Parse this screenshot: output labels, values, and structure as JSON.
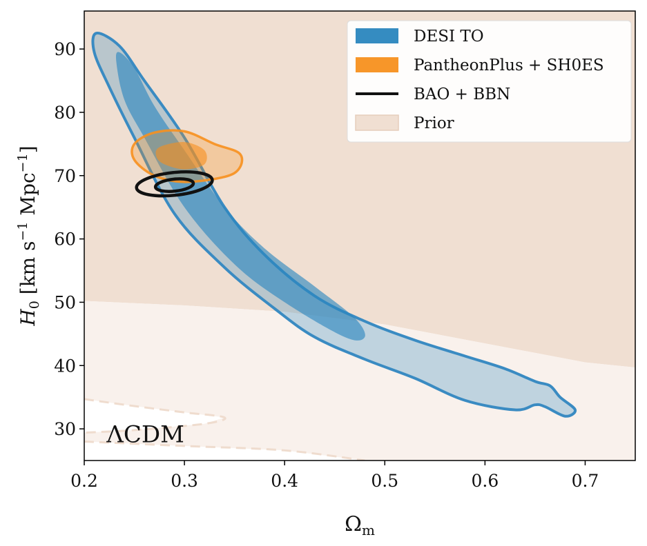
{
  "chart_data": {
    "type": "contour",
    "xlabel": "Ωm",
    "ylabel": "H0 [km s−1 Mpc−1]",
    "xlabel_parts": {
      "symbol": "Ω",
      "sub": "m"
    },
    "ylabel_parts": {
      "symbol": "H",
      "sub": "0",
      "unit_open": " [km s",
      "exp1": "−1",
      "unit_mid": " Mpc",
      "exp2": "−1",
      "unit_close": "]"
    },
    "xlim": [
      0.2,
      0.75
    ],
    "ylim": [
      25,
      96
    ],
    "xticks": [
      0.2,
      0.3,
      0.4,
      0.5,
      0.6,
      0.7
    ],
    "xtick_labels": [
      "0.2",
      "0.3",
      "0.4",
      "0.5",
      "0.6",
      "0.7"
    ],
    "yticks": [
      30,
      40,
      50,
      60,
      70,
      80,
      90
    ],
    "ytick_labels": [
      "30",
      "40",
      "50",
      "60",
      "70",
      "80",
      "90"
    ],
    "legend_position": "top-right",
    "colors": {
      "desi": "#2a86be",
      "desi_line": "#3a8bc2",
      "pantheon": "#f7901e",
      "bao": "#111111",
      "prior_dark": "#f0dfd2",
      "prior_light": "#f9f1ec"
    },
    "series": [
      {
        "name": "Prior",
        "kind": "region",
        "regions": [
          {
            "level": "inner",
            "boundary": [
              [
                0.2,
                50.2
              ],
              [
                0.3,
                49.5
              ],
              [
                0.4,
                48.5
              ],
              [
                0.5,
                46.5
              ],
              [
                0.6,
                43.5
              ],
              [
                0.7,
                40.5
              ],
              [
                0.75,
                39.7
              ]
            ]
          },
          {
            "level": "outer",
            "boundary": [
              [
                0.2,
                34.7
              ],
              [
                0.25,
                33.6
              ],
              [
                0.3,
                32.6
              ],
              [
                0.34,
                31.8
              ],
              [
                0.32,
                30.8
              ],
              [
                0.25,
                29.8
              ],
              [
                0.2,
                29.4
              ]
            ]
          },
          {
            "level": "outer",
            "boundary": [
              [
                0.2,
                28.0
              ],
              [
                0.3,
                27.3
              ],
              [
                0.4,
                26.6
              ],
              [
                0.48,
                25.0
              ]
            ]
          }
        ]
      },
      {
        "name": "DESI TO",
        "kind": "contour",
        "levels": [
          {
            "level": "95%",
            "points": [
              [
                0.212,
                92.5
              ],
              [
                0.235,
                90.5
              ],
              [
                0.26,
                85.0
              ],
              [
                0.3,
                76.0
              ],
              [
                0.34,
                65.0
              ],
              [
                0.38,
                57.5
              ],
              [
                0.43,
                51.0
              ],
              [
                0.48,
                47.0
              ],
              [
                0.53,
                44.0
              ],
              [
                0.58,
                41.5
              ],
              [
                0.62,
                39.5
              ],
              [
                0.65,
                37.5
              ],
              [
                0.665,
                36.8
              ],
              [
                0.675,
                35.0
              ],
              [
                0.69,
                33.0
              ],
              [
                0.68,
                32.0
              ],
              [
                0.66,
                33.5
              ],
              [
                0.65,
                33.8
              ],
              [
                0.63,
                33.0
              ],
              [
                0.58,
                34.5
              ],
              [
                0.53,
                38.0
              ],
              [
                0.48,
                41.0
              ],
              [
                0.43,
                44.5
              ],
              [
                0.39,
                49.0
              ],
              [
                0.34,
                55.5
              ],
              [
                0.29,
                64.0
              ],
              [
                0.25,
                76.0
              ],
              [
                0.225,
                84.0
              ],
              [
                0.21,
                89.5
              ]
            ]
          },
          {
            "level": "68%",
            "points": [
              [
                0.235,
                89.5
              ],
              [
                0.25,
                87.0
              ],
              [
                0.27,
                81.0
              ],
              [
                0.3,
                74.0
              ],
              [
                0.34,
                65.0
              ],
              [
                0.38,
                58.5
              ],
              [
                0.43,
                52.5
              ],
              [
                0.47,
                47.5
              ],
              [
                0.48,
                44.5
              ],
              [
                0.46,
                44.5
              ],
              [
                0.4,
                50.0
              ],
              [
                0.35,
                56.0
              ],
              [
                0.3,
                65.0
              ],
              [
                0.26,
                76.0
              ],
              [
                0.24,
                82.0
              ],
              [
                0.232,
                88.0
              ]
            ]
          }
        ]
      },
      {
        "name": "PantheonPlus + SH0ES",
        "kind": "contour",
        "levels": [
          {
            "level": "95%",
            "points": [
              [
                0.25,
                75.0
              ],
              [
                0.27,
                76.8
              ],
              [
                0.3,
                77.0
              ],
              [
                0.33,
                75.0
              ],
              [
                0.355,
                73.5
              ],
              [
                0.355,
                71.2
              ],
              [
                0.34,
                69.8
              ],
              [
                0.3,
                69.0
              ],
              [
                0.27,
                70.0
              ],
              [
                0.25,
                72.5
              ]
            ]
          },
          {
            "level": "68%",
            "points": [
              [
                0.275,
                74.5
              ],
              [
                0.3,
                75.3
              ],
              [
                0.32,
                74.0
              ],
              [
                0.32,
                71.8
              ],
              [
                0.3,
                71.0
              ],
              [
                0.28,
                71.8
              ],
              [
                0.272,
                73.0
              ]
            ]
          }
        ]
      },
      {
        "name": "BAO + BBN",
        "kind": "contour",
        "levels": [
          {
            "level": "95%",
            "center": [
              0.29,
              68.7
            ],
            "rx": 0.038,
            "ry": 1.8,
            "angle_data_slope": -14
          },
          {
            "level": "68%",
            "center": [
              0.29,
              68.5
            ],
            "rx": 0.019,
            "ry": 0.95,
            "angle_data_slope": -14
          }
        ]
      }
    ],
    "legend": [
      {
        "label": "DESI TO",
        "style": "patch",
        "color": "#2a86be"
      },
      {
        "label": "PantheonPlus + SH0ES",
        "style": "patch",
        "color": "#f7901e"
      },
      {
        "label": "BAO + BBN",
        "style": "line",
        "color": "#111111"
      },
      {
        "label": "Prior",
        "style": "patch",
        "color": "#f0dfd2"
      }
    ],
    "annotations": [
      {
        "text": "ΛCDM",
        "at": [
          0.225,
          29.2
        ]
      }
    ]
  }
}
